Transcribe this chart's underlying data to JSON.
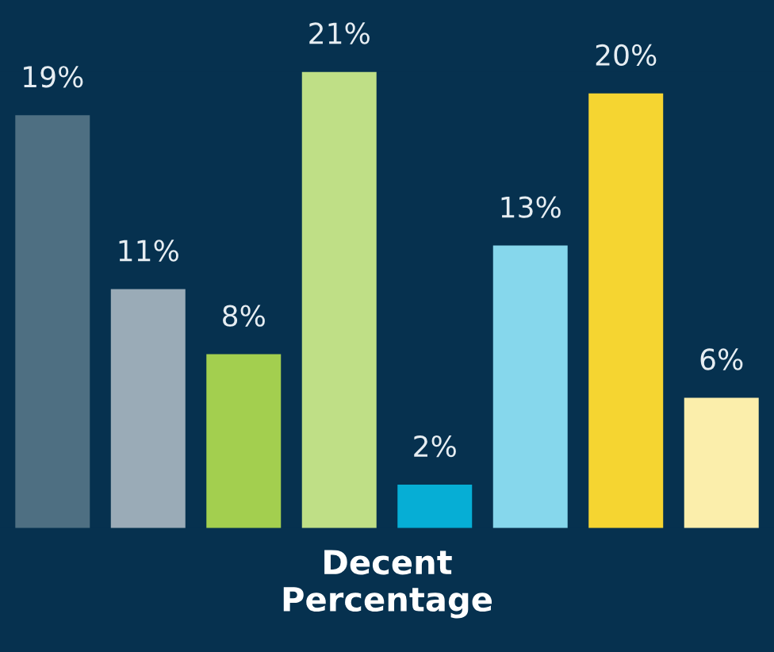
{
  "chart_data": {
    "type": "bar",
    "xlabel": "Decent\nPercentage",
    "categories": [
      null,
      null,
      null,
      null,
      null,
      null,
      null,
      null
    ],
    "values": [
      19,
      11,
      8,
      21,
      2,
      13,
      20,
      6
    ],
    "value_labels": [
      "19%",
      "11%",
      "8%",
      "21%",
      "2%",
      "13%",
      "20%",
      "6%"
    ],
    "colors": [
      "#4e6f82",
      "#9aabb7",
      "#a3cf4f",
      "#bfdf86",
      "#06aed5",
      "#86d7ec",
      "#f5d531",
      "#fbeeab"
    ],
    "grid": false,
    "legend": false
  }
}
